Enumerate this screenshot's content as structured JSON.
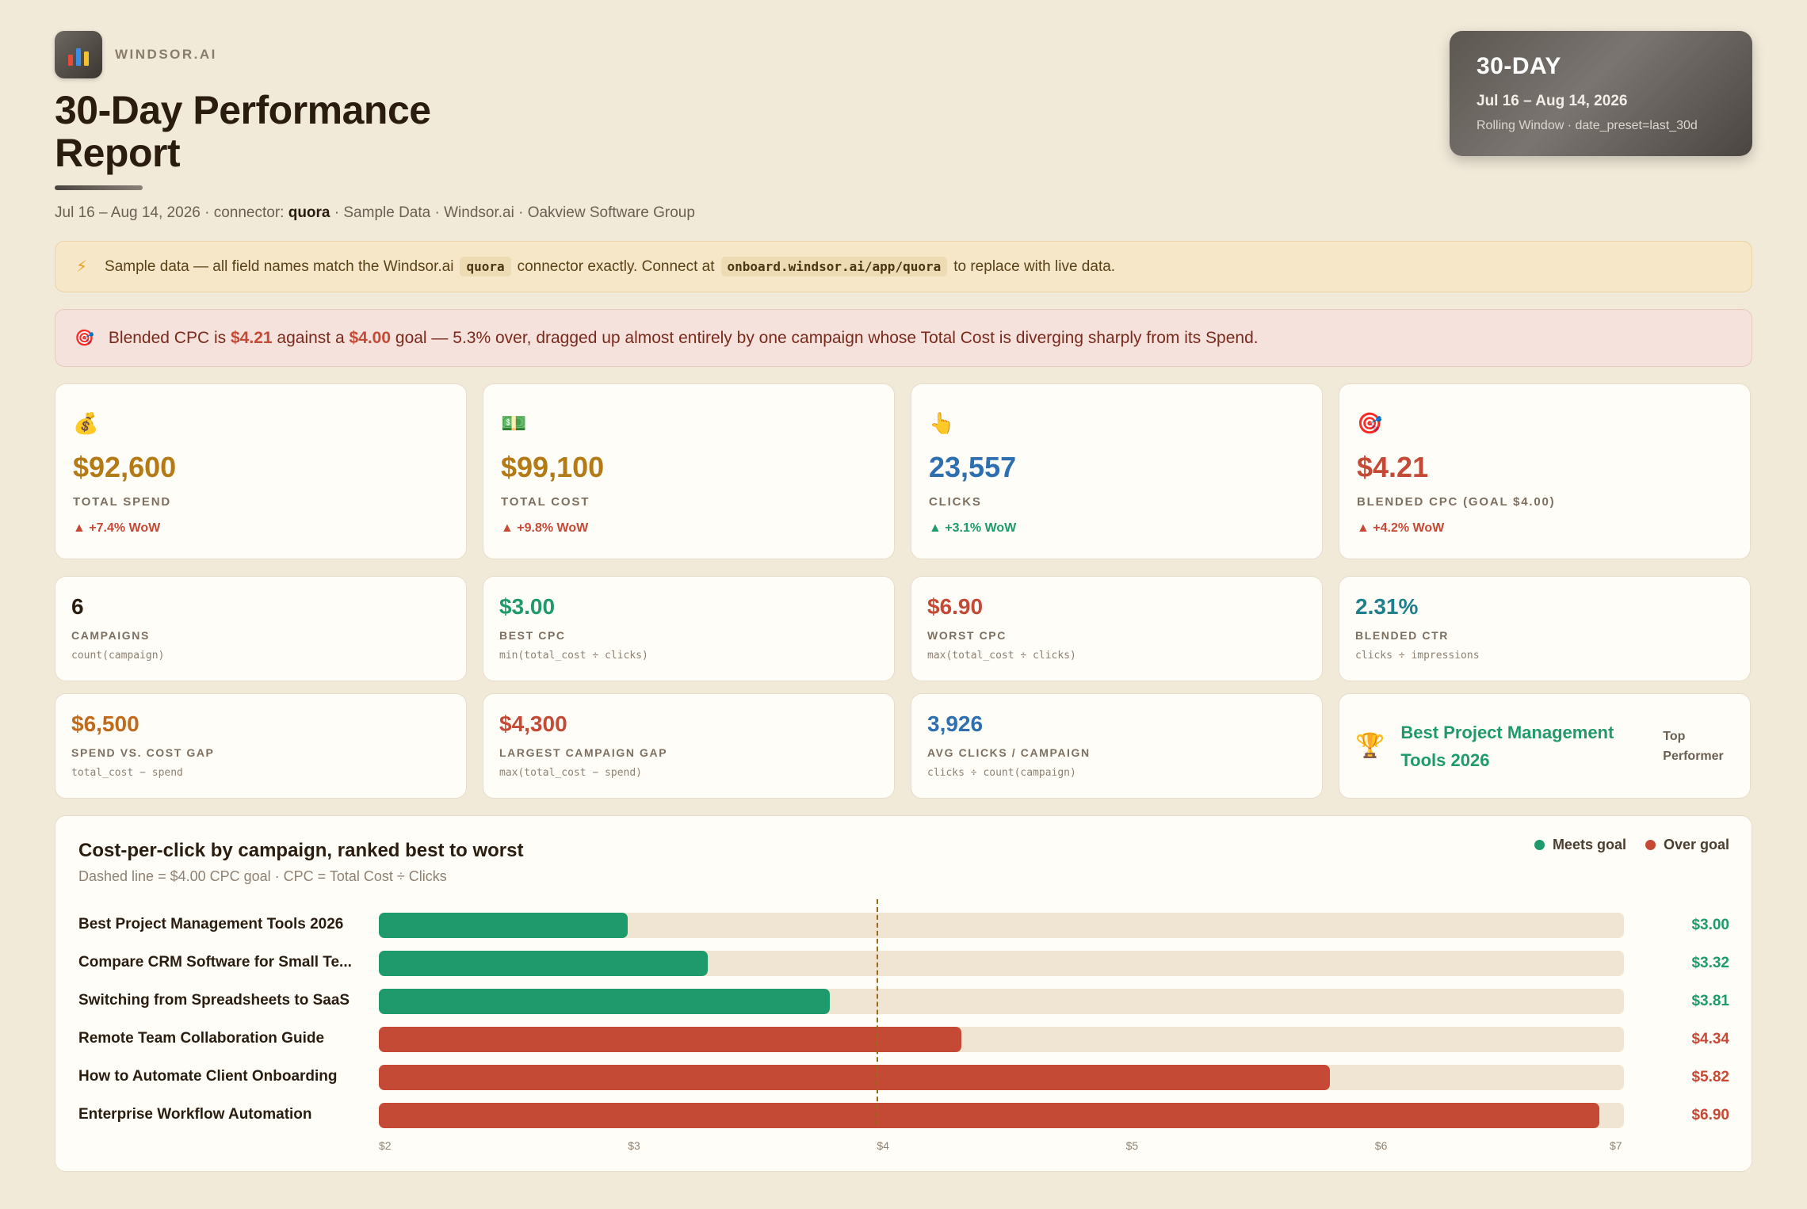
{
  "brand": {
    "name": "WINDSOR.AI",
    "logo_icon": "bar-chart-icon"
  },
  "header": {
    "title": "30-Day Performance Report",
    "subtitle_prefix": "Jul 16 – Aug 14, 2026 · connector:",
    "connector": "quora",
    "subtitle_suffix": "· Sample Data · Windsor.ai · Oakview Software Group"
  },
  "period": {
    "title": "30-DAY",
    "range": "Jul 16 – Aug 14, 2026",
    "note": "Rolling Window · date_preset=last_30d"
  },
  "notice": {
    "part1": "Sample data — all field names match the Windsor.ai",
    "code1": "quora",
    "part2": "connector exactly. Connect at",
    "code2": "onboard.windsor.ai/app/quora",
    "part3": "to replace with live data."
  },
  "alert": {
    "part1": "Blended CPC is",
    "value": "$4.21",
    "part2": "against a",
    "goal": "$4.00",
    "part3": "goal — 5.3% over, dragged up almost entirely by one campaign whose Total Cost is diverging sharply from its Spend."
  },
  "kpis": [
    {
      "icon": "💰",
      "icon_name": "money-bag-icon",
      "value": "$92,600",
      "label": "TOTAL SPEND",
      "delta": "▲ +7.4% WoW",
      "color": "#b37a16"
    },
    {
      "icon": "💵",
      "icon_name": "dollar-bills-icon",
      "value": "$99,100",
      "label": "TOTAL COST",
      "delta": "▲ +9.8% WoW",
      "color": "#b37a16"
    },
    {
      "icon": "👆",
      "icon_name": "pointing-hand-icon",
      "value": "23,557",
      "label": "CLICKS",
      "delta": "▲ +3.1% WoW",
      "color": "#2e6fb0"
    },
    {
      "icon": "🎯",
      "icon_name": "target-icon",
      "value": "$4.21",
      "label": "BLENDED CPC (GOAL $4.00)",
      "delta": "▲ +4.2% WoW",
      "color": "#c44a36"
    }
  ],
  "metrics_row2": [
    {
      "value": "6",
      "label": "CAMPAIGNS",
      "formula": "count(campaign)",
      "color": "#2a1d10"
    },
    {
      "value": "$3.00",
      "label": "BEST CPC",
      "formula": "min(total_cost ÷ clicks)",
      "color": "#1f9a6c"
    },
    {
      "value": "$6.90",
      "label": "WORST CPC",
      "formula": "max(total_cost ÷ clicks)",
      "color": "#c44a36"
    },
    {
      "value": "2.31%",
      "label": "BLENDED CTR",
      "formula": "clicks ÷ impressions",
      "color": "#1f7f8c"
    }
  ],
  "metrics_row3": [
    {
      "value": "$6,500",
      "label": "SPEND VS. COST GAP",
      "formula": "total_cost − spend",
      "color": "#c06a1a"
    },
    {
      "value": "$4,300",
      "label": "LARGEST CAMPAIGN GAP",
      "formula": "max(total_cost − spend)",
      "color": "#c44a36"
    },
    {
      "value": "3,926",
      "label": "AVG CLICKS / CAMPAIGN",
      "formula": "clicks ÷ count(campaign)",
      "color": "#2e6fb0"
    }
  ],
  "top_performer": {
    "icon": "🏆",
    "name": "Best Project Management Tools 2026",
    "tag": "Top Performer"
  },
  "chart": {
    "title": "Cost-per-click by campaign, ranked best to worst",
    "subtitle": "Dashed line = $4.00 CPC goal · CPC = Total Cost ÷ Clicks",
    "legend_meets": "Meets goal",
    "legend_over": "Over goal",
    "color_meets": "#1f9a6c",
    "color_over": "#c44a36"
  },
  "chart_data": {
    "type": "bar",
    "orientation": "horizontal",
    "title": "Cost-per-click by campaign, ranked best to worst",
    "categories": [
      "Best Project Management Tools 2026",
      "Compare CRM Software for Small Te...",
      "Switching from Spreadsheets to SaaS",
      "Remote Team Collaboration Guide",
      "How to Automate Client Onboarding",
      "Enterprise Workflow Automation"
    ],
    "values": [
      3.0,
      3.32,
      3.81,
      4.34,
      5.82,
      6.9
    ],
    "value_labels": [
      "$3.00",
      "$3.32",
      "$3.81",
      "$4.34",
      "$5.82",
      "$6.90"
    ],
    "status": [
      "meets",
      "meets",
      "meets",
      "over",
      "over",
      "over"
    ],
    "goal": 4.0,
    "xlim": [
      2,
      7
    ],
    "x_ticks": [
      "$2",
      "$3",
      "$4",
      "$5",
      "$6",
      "$7"
    ],
    "grid": false,
    "legend": "top-right"
  }
}
